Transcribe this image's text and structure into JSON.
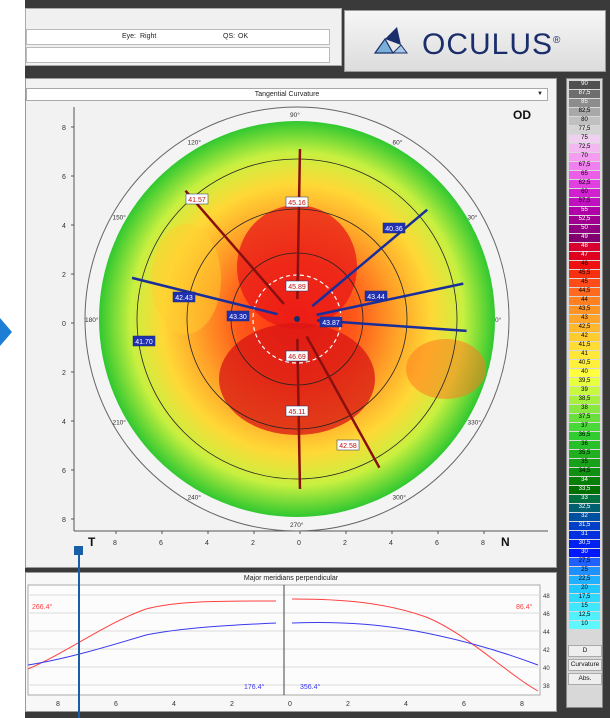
{
  "header": {
    "eye_label": "Eye:",
    "eye_value": "Right",
    "qs_label": "QS:",
    "qs_value": "OK"
  },
  "logo": {
    "text": "OCULUS",
    "mark": "®"
  },
  "map": {
    "dropdown": "Tangential Curvature",
    "eye": "OD",
    "corner_left": "T",
    "corner_right": "N",
    "angles": [
      "90°",
      "60°",
      "30°",
      "0°",
      "330°",
      "300°",
      "270°",
      "240°",
      "210°",
      "180°",
      "150°",
      "120°"
    ],
    "y_ticks": [
      "8",
      "6",
      "4",
      "2",
      "0",
      "2",
      "4",
      "6",
      "8"
    ],
    "x_ticks": [
      "8",
      "6",
      "4",
      "2",
      "0",
      "2",
      "4",
      "6",
      "8"
    ],
    "markers": [
      {
        "value": "45.16"
      },
      {
        "value": "45.89"
      },
      {
        "value": "46.69"
      },
      {
        "value": "45.11"
      },
      {
        "value": "42.58"
      },
      {
        "value": "41.57"
      },
      {
        "value": "40.36"
      },
      {
        "value": "42.43"
      },
      {
        "value": "43.30"
      },
      {
        "value": "43.87"
      },
      {
        "value": "43.44"
      },
      {
        "value": "41.70"
      }
    ]
  },
  "colors": {
    "accent_arrow": "#1d7ed6",
    "logo_text": "#1a2e6b",
    "profile_red": "#ff4040",
    "profile_blue": "#3a3aee"
  },
  "scale": {
    "values": [
      "90",
      "87,5",
      "85",
      "82,5",
      "80",
      "77,5",
      "75",
      "72,5",
      "70",
      "67,5",
      "65",
      "62,5",
      "60",
      "57,5",
      "55",
      "52,5",
      "50",
      "49",
      "48",
      "47",
      "46",
      "45,5",
      "45",
      "44,5",
      "44",
      "43,5",
      "43",
      "42,5",
      "42",
      "41,5",
      "41",
      "40,5",
      "40",
      "39,5",
      "39",
      "38,5",
      "38",
      "37,5",
      "37",
      "36,5",
      "36",
      "35,5",
      "35",
      "34,5",
      "34",
      "33,5",
      "33",
      "32,5",
      "32",
      "31,5",
      "31",
      "30,5",
      "30",
      "27,5",
      "25",
      "22,5",
      "20",
      "17,5",
      "15",
      "12,5",
      "10"
    ],
    "colors": [
      "#505050",
      "#6e6e6e",
      "#8c8c8c",
      "#a8a8a8",
      "#c0c0c0",
      "#d4d4d4",
      "#f0d0f0",
      "#f3b8f0",
      "#f49cf0",
      "#f080f0",
      "#ea5ee8",
      "#e040e0",
      "#d020d0",
      "#c010c0",
      "#b000a8",
      "#a00090",
      "#900080",
      "#800070",
      "#d80030",
      "#e00020",
      "#f01010",
      "#f83010",
      "#ff4a1a",
      "#ff6a1e",
      "#ff8020",
      "#ff9424",
      "#ffa428",
      "#ffb82c",
      "#ffcc30",
      "#ffdc34",
      "#ffe838",
      "#fff03c",
      "#ffff40",
      "#e8ff40",
      "#c8f840",
      "#a8f040",
      "#88e840",
      "#68e03c",
      "#48d838",
      "#30cc30",
      "#28c028",
      "#20b020",
      "#18a018",
      "#109010",
      "#088008",
      "#007000",
      "#007040",
      "#006070",
      "#0050a0",
      "#0040c8",
      "#0030e0",
      "#0020f0",
      "#0018ff",
      "#2060ff",
      "#2090ff",
      "#20b0ff",
      "#20c8ff",
      "#30d8ff",
      "#40e8ff",
      "#50f0ff",
      "#60f8ff"
    ],
    "footer_d": "D",
    "footer_curvature": "Curvature",
    "footer_abs": "Abs."
  },
  "profile": {
    "title": "Major meridians perpendicular",
    "label_left_top": "266.4°",
    "label_right_top": "86.4°",
    "label_left_bottom": "176.4°",
    "label_right_bottom": "356.4°",
    "right_ticks": [
      "48",
      "46",
      "44",
      "42",
      "40",
      "38"
    ],
    "x_ticks": [
      "8",
      "6",
      "4",
      "2",
      "0",
      "2",
      "4",
      "6",
      "8"
    ]
  }
}
